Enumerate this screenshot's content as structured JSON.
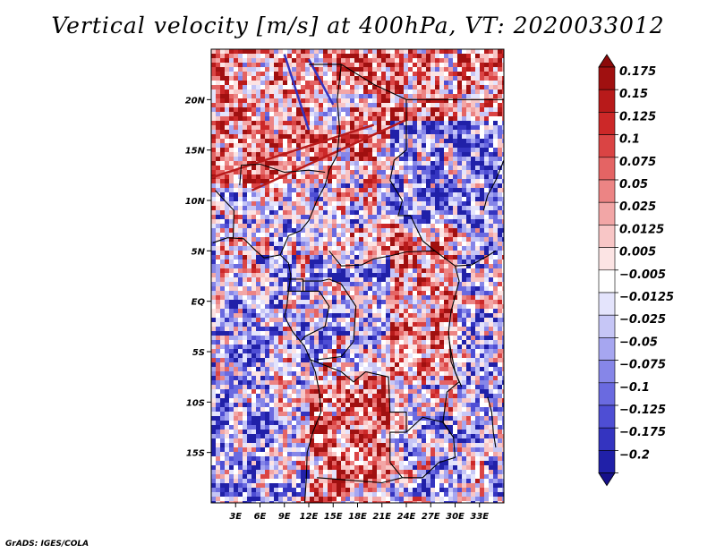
{
  "title": "Vertical velocity [m/s] at 400hPa, VT: 2020033012",
  "credit": "GrADS: IGES/COLA",
  "map": {
    "lat_range": [
      -20,
      25
    ],
    "lon_range": [
      0,
      36
    ],
    "lat_ticks": [
      {
        "value": 20,
        "label": "20N"
      },
      {
        "value": 15,
        "label": "15N"
      },
      {
        "value": 10,
        "label": "10N"
      },
      {
        "value": 5,
        "label": "5N"
      },
      {
        "value": 0,
        "label": "EQ"
      },
      {
        "value": -5,
        "label": "5S"
      },
      {
        "value": -10,
        "label": "10S"
      },
      {
        "value": -15,
        "label": "15S"
      }
    ],
    "lon_ticks": [
      {
        "value": 3,
        "label": "3E"
      },
      {
        "value": 6,
        "label": "6E"
      },
      {
        "value": 9,
        "label": "9E"
      },
      {
        "value": 12,
        "label": "12E"
      },
      {
        "value": 15,
        "label": "15E"
      },
      {
        "value": 18,
        "label": "18E"
      },
      {
        "value": 21,
        "label": "21E"
      },
      {
        "value": 24,
        "label": "24E"
      },
      {
        "value": 27,
        "label": "27E"
      },
      {
        "value": 30,
        "label": "30E"
      },
      {
        "value": 33,
        "label": "33E"
      }
    ]
  },
  "colorbar": {
    "levels": [
      {
        "label": "0.175",
        "color": "#a01010"
      },
      {
        "label": "0.15",
        "color": "#b81a1a"
      },
      {
        "label": "0.125",
        "color": "#cc2828"
      },
      {
        "label": "0.1",
        "color": "#da4444"
      },
      {
        "label": "0.075",
        "color": "#e46464"
      },
      {
        "label": "0.05",
        "color": "#ec8484"
      },
      {
        "label": "0.025",
        "color": "#f2a6a6"
      },
      {
        "label": "0.0125",
        "color": "#f8c6c6"
      },
      {
        "label": "0.005",
        "color": "#fce4e4"
      },
      {
        "label": "−0.005",
        "color": "#ffffff"
      },
      {
        "label": "−0.0125",
        "color": "#e4e4fc"
      },
      {
        "label": "−0.025",
        "color": "#c6c6f6"
      },
      {
        "label": "−0.05",
        "color": "#a6a6f0"
      },
      {
        "label": "−0.075",
        "color": "#8686e8"
      },
      {
        "label": "−0.1",
        "color": "#6a6ae0"
      },
      {
        "label": "−0.125",
        "color": "#4e4ed4"
      },
      {
        "label": "−0.175",
        "color": "#3434c0"
      },
      {
        "label": "−0.2",
        "color": "#2020a8"
      }
    ],
    "top_color": "#8c0a0a",
    "bottom_color": "#16108a"
  }
}
